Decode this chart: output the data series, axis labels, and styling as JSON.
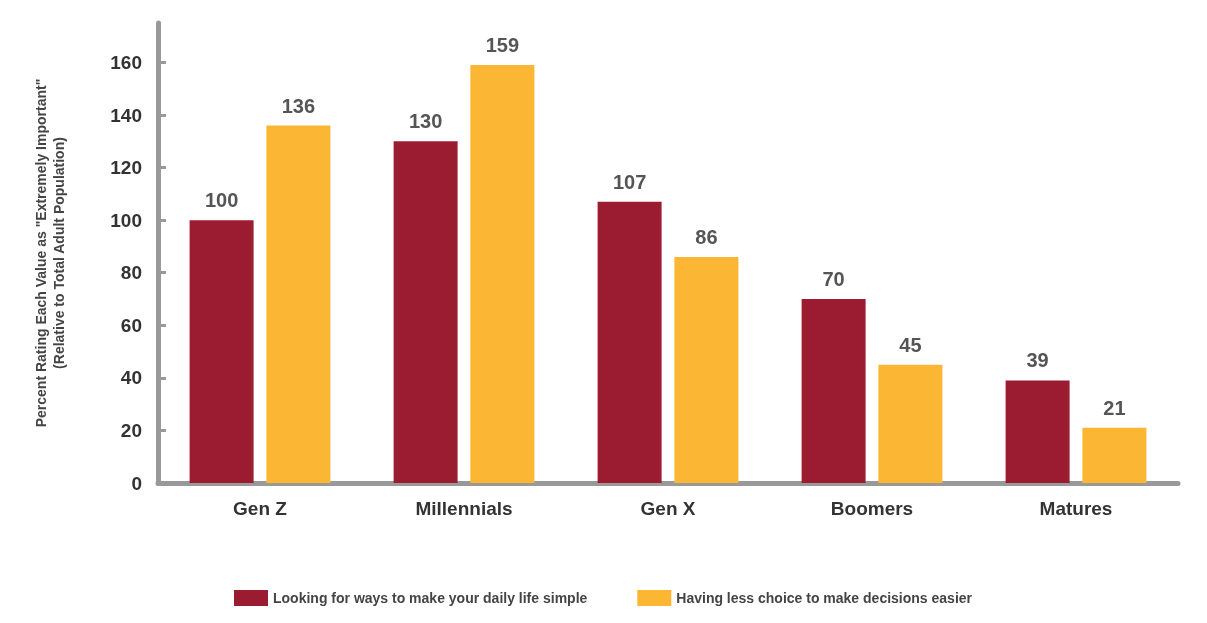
{
  "chart_data": {
    "type": "bar",
    "ylabel": "Percent Rating Each Value as \"Extremely Important\"\n(Relative to Total Adult Population)",
    "categories": [
      "Gen Z",
      "Millennials",
      "Gen X",
      "Boomers",
      "Matures"
    ],
    "series": [
      {
        "name": "Looking for ways to make your daily life simple",
        "color": "#9b1b30",
        "values": [
          100,
          130,
          107,
          70,
          39
        ]
      },
      {
        "name": "Having less choice to make decisions easier",
        "color": "#fbb634",
        "values": [
          136,
          159,
          86,
          45,
          21
        ]
      }
    ],
    "ylim": [
      0,
      175
    ],
    "yticks": [
      0,
      20,
      40,
      60,
      80,
      100,
      120,
      140,
      160
    ],
    "grid": false,
    "legend": "bottom",
    "data_labels": true
  }
}
